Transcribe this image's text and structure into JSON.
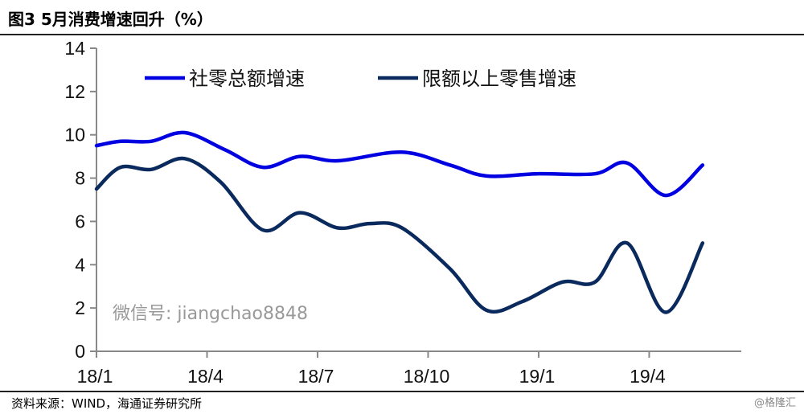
{
  "header": {
    "title": "图3  5月消费增速回升（%）"
  },
  "footer": {
    "source": "资料来源：WIND，海通证券研究所"
  },
  "watermarks": {
    "wechat": "微信号: jiangchao8848",
    "brand": "@格隆汇"
  },
  "chart_data": {
    "type": "line",
    "title": "5月消费增速回升（%）",
    "xlabel": "",
    "ylabel": "",
    "ylim": [
      0,
      14
    ],
    "yticks": [
      0,
      2,
      4,
      6,
      8,
      10,
      12,
      14
    ],
    "xticks": [
      {
        "label": "18/1",
        "x": 0
      },
      {
        "label": "18/4",
        "x": 3
      },
      {
        "label": "18/7",
        "x": 6
      },
      {
        "label": "18/10",
        "x": 9
      },
      {
        "label": "19/1",
        "x": 12
      },
      {
        "label": "19/4",
        "x": 15
      }
    ],
    "xlim": [
      0,
      17.5
    ],
    "legend": "top",
    "series": [
      {
        "name": "社零总额增速",
        "color": "#0000e0",
        "x": [
          0,
          0.65,
          1.48,
          2.4,
          3.5,
          4.52,
          5.52,
          6.55,
          8.29,
          9.6,
          10.58,
          12.0,
          13.53,
          14.4,
          15.45,
          16.45
        ],
        "y": [
          9.5,
          9.7,
          9.7,
          10.1,
          9.3,
          8.5,
          9.0,
          8.8,
          9.2,
          8.6,
          8.1,
          8.2,
          8.2,
          8.7,
          7.2,
          8.6
        ]
      },
      {
        "name": "限额以上零售增速",
        "color": "#0a2a5e",
        "x": [
          0,
          0.65,
          1.48,
          2.4,
          3.38,
          4.52,
          5.52,
          6.55,
          7.42,
          8.29,
          9.6,
          10.58,
          11.56,
          12.65,
          13.53,
          14.4,
          15.45,
          16.45
        ],
        "y": [
          7.5,
          8.5,
          8.4,
          8.9,
          7.8,
          5.6,
          6.4,
          5.7,
          5.9,
          5.7,
          3.8,
          1.9,
          2.3,
          3.2,
          3.2,
          5.0,
          1.8,
          5.0
        ]
      }
    ]
  }
}
